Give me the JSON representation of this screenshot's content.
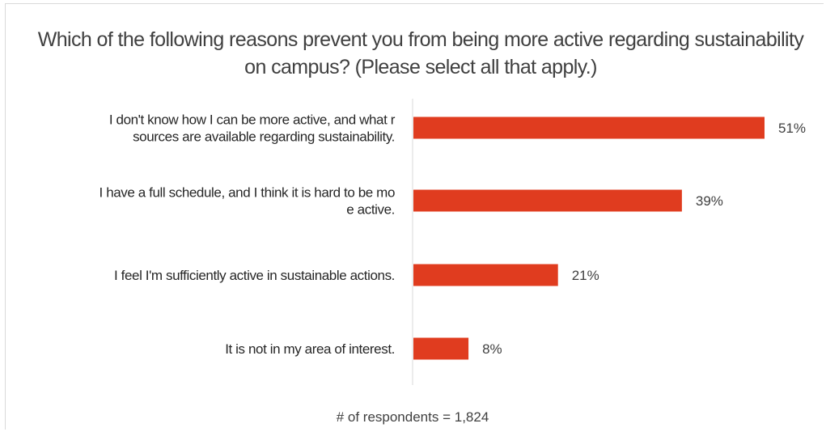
{
  "chart_data": {
    "type": "bar",
    "orientation": "horizontal",
    "title": "Which of the following reasons prevent you from being more active regarding sustainability on campus? (Please select all that apply.)",
    "categories": [
      "I don't know how I can be more active, and what resources are available regarding sustainability.",
      "I have a full schedule, and I think it is hard to be more active.",
      "I feel I'm sufficiently active in sustainable actions.",
      "It is not in my area of interest."
    ],
    "values": [
      51,
      39,
      21,
      8
    ],
    "value_labels": [
      "51%",
      "39%",
      "21%",
      "8%"
    ],
    "unit": "%",
    "xlim": [
      0,
      51
    ],
    "bar_color": "#e03c1f",
    "grid": false
  },
  "footnote": {
    "prefix": "# of",
    "strong": "respondents",
    "suffix": "= 1,824"
  }
}
